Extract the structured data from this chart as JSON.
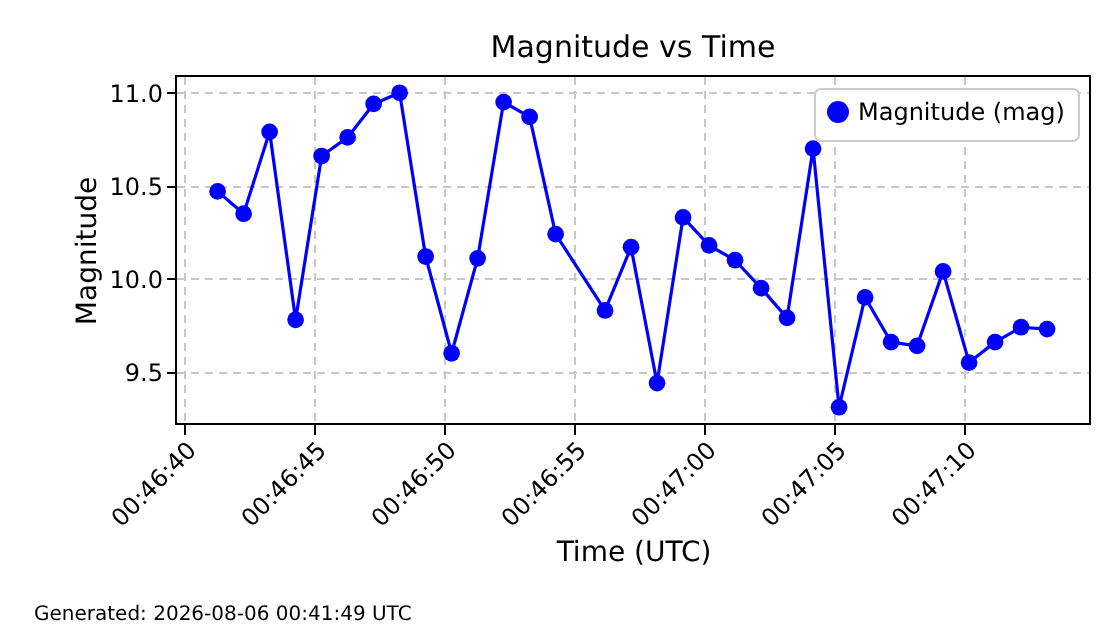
{
  "chart_data": {
    "type": "line",
    "title": "Magnitude vs Time",
    "xlabel": "Time (UTC)",
    "ylabel": "Magnitude",
    "x": [
      "2026-08-06T00:46:41.3",
      "2026-08-06T00:46:42.3",
      "2026-08-06T00:46:43.3",
      "2026-08-06T00:46:44.3",
      "2026-08-06T00:46:45.3",
      "2026-08-06T00:46:46.3",
      "2026-08-06T00:46:47.3",
      "2026-08-06T00:46:48.3",
      "2026-08-06T00:46:49.3",
      "2026-08-06T00:46:50.3",
      "2026-08-06T00:46:51.3",
      "2026-08-06T00:46:52.3",
      "2026-08-06T00:46:53.3",
      "2026-08-06T00:46:54.3",
      "2026-08-06T00:46:56.2",
      "2026-08-06T00:46:57.2",
      "2026-08-06T00:46:58.2",
      "2026-08-06T00:46:59.2",
      "2026-08-06T00:47:00.2",
      "2026-08-06T00:47:01.2",
      "2026-08-06T00:47:02.2",
      "2026-08-06T00:47:03.2",
      "2026-08-06T00:47:04.2",
      "2026-08-06T00:47:05.2",
      "2026-08-06T00:47:06.2",
      "2026-08-06T00:47:07.2",
      "2026-08-06T00:47:08.2",
      "2026-08-06T00:47:09.2",
      "2026-08-06T00:47:10.2",
      "2026-08-06T00:47:11.2",
      "2026-08-06T00:47:12.2",
      "2026-08-06T00:47:13.2"
    ],
    "series": [
      {
        "name": "Magnitude (mag)",
        "color": "#0000ff",
        "values": [
          10.47,
          10.35,
          10.79,
          9.78,
          10.66,
          10.76,
          10.94,
          11.0,
          10.12,
          9.6,
          10.11,
          10.95,
          10.87,
          10.24,
          9.83,
          10.17,
          9.44,
          10.33,
          10.18,
          10.1,
          9.95,
          9.79,
          10.7,
          9.31,
          9.9,
          9.66,
          9.64,
          10.04,
          9.55,
          9.66,
          9.74,
          9.73
        ]
      }
    ],
    "xlim": [
      "2026-08-06T00:46:39.7",
      "2026-08-06T00:47:14.85"
    ],
    "xticks": [
      {
        "value": "2026-08-06T00:46:40",
        "label": "00:46:40"
      },
      {
        "value": "2026-08-06T00:46:45",
        "label": "00:46:45"
      },
      {
        "value": "2026-08-06T00:46:50",
        "label": "00:46:50"
      },
      {
        "value": "2026-08-06T00:46:55",
        "label": "00:46:55"
      },
      {
        "value": "2026-08-06T00:47:00",
        "label": "00:47:00"
      },
      {
        "value": "2026-08-06T00:47:05",
        "label": "00:47:05"
      },
      {
        "value": "2026-08-06T00:47:10",
        "label": "00:47:10"
      }
    ],
    "ylim": [
      9.22,
      11.09
    ],
    "yticks": [
      9.5,
      {
        "value": 10,
        "label": "10.0"
      },
      10.5,
      {
        "value": 11,
        "label": "11.0"
      }
    ],
    "grid": true,
    "legend": "top right",
    "marker": "circle",
    "line_style": "solid",
    "annotations": [
      "Generated: 2026-08-06 00:41:49 UTC"
    ]
  }
}
